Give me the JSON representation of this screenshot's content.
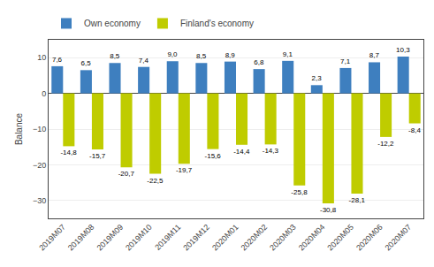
{
  "chart_data": {
    "type": "bar",
    "categories": [
      "2019M07",
      "2019M08",
      "2019M09",
      "2019M10",
      "2019M11",
      "2019M12",
      "2020M01",
      "2020M02",
      "2020M03",
      "2020M04",
      "2020M05",
      "2020M06",
      "2020M07"
    ],
    "series": [
      {
        "name": "Own economy",
        "color": "#3E7FBF",
        "values": [
          7.6,
          6.5,
          8.5,
          7.4,
          9.0,
          8.5,
          8.9,
          6.8,
          9.1,
          2.3,
          7.1,
          8.7,
          10.3
        ],
        "value_labels": [
          "7,6",
          "6,5",
          "8,5",
          "7,4",
          "9,0",
          "8,5",
          "8,9",
          "6,8",
          "9,1",
          "2,3",
          "7,1",
          "8,7",
          "10,3"
        ]
      },
      {
        "name": "Finland's economy",
        "color": "#BFCC00",
        "values": [
          -14.8,
          -15.7,
          -20.7,
          -22.5,
          -19.7,
          -15.6,
          -14.4,
          -14.3,
          -25.8,
          -30.8,
          -28.1,
          -12.2,
          -8.4
        ],
        "value_labels": [
          "-14,8",
          "-15,7",
          "-20,7",
          "-22,5",
          "-19,7",
          "-15,6",
          "-14,4",
          "-14,3",
          "-25,8",
          "-30,8",
          "-28,1",
          "-12,2",
          "-8,4"
        ]
      }
    ],
    "ylabel": "Balance",
    "ylim": [
      -35,
      15
    ],
    "yticks": [
      {
        "value": -30,
        "label": "−30"
      },
      {
        "value": -20,
        "label": "−20"
      },
      {
        "value": -10,
        "label": "−10"
      },
      0,
      10
    ],
    "grid": true,
    "legend": "upper left",
    "data_labels": true
  }
}
